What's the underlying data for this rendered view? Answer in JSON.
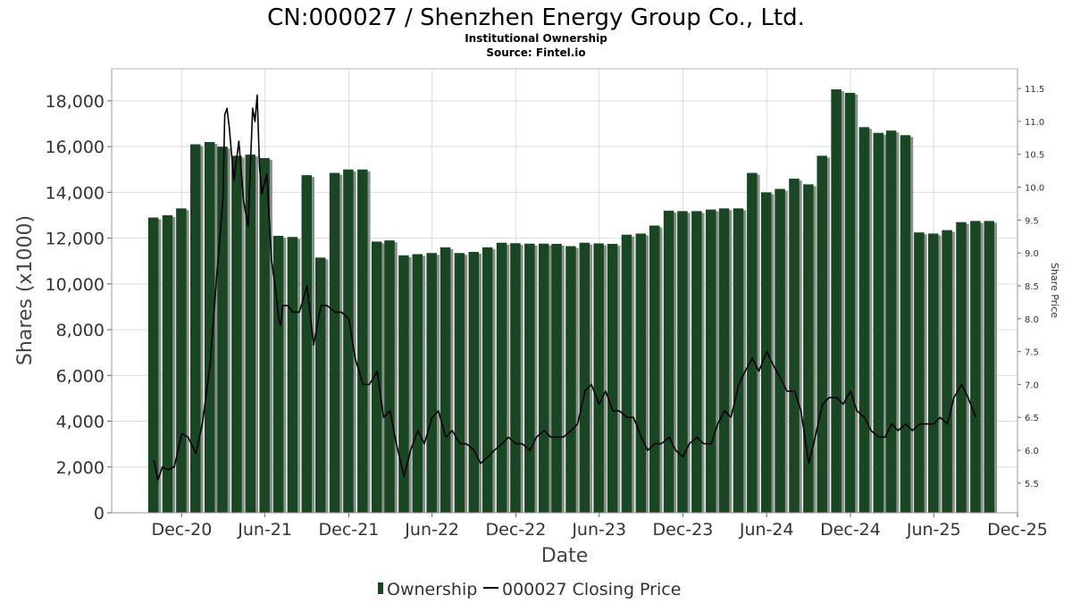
{
  "chart_data": {
    "type": "bar",
    "title": "CN:000027 / Shenzhen Energy Group Co., Ltd.",
    "subtitle": "Institutional Ownership",
    "source": "Source: Fintel.io",
    "xlabel": "Date",
    "ylabel": "Shares (x1000)",
    "y2label": "Share Price",
    "ylim": [
      0,
      19400
    ],
    "y2lim": [
      5.05,
      11.8
    ],
    "yticks": [
      "0",
      "2,000",
      "4,000",
      "6,000",
      "8,000",
      "10,000",
      "12,000",
      "14,000",
      "16,000",
      "18,000"
    ],
    "ytick_values": [
      0,
      2000,
      4000,
      6000,
      8000,
      10000,
      12000,
      14000,
      16000,
      18000
    ],
    "y2ticks": [
      "5.5",
      "6.0",
      "6.5",
      "7.0",
      "7.5",
      "8.0",
      "8.5",
      "9.0",
      "9.5",
      "10.0",
      "10.5",
      "11.0",
      "11.5"
    ],
    "y2tick_values": [
      5.5,
      6.0,
      6.5,
      7.0,
      7.5,
      8.0,
      8.5,
      9.0,
      9.5,
      10.0,
      10.5,
      11.0,
      11.5
    ],
    "xticks": [
      "Dec-20",
      "Jun-21",
      "Dec-21",
      "Jun-22",
      "Dec-22",
      "Jun-23",
      "Dec-23",
      "Jun-24",
      "Dec-24",
      "Jun-25",
      "Dec-25"
    ],
    "xtick_dates": [
      "2020-12-01",
      "2021-06-01",
      "2021-12-01",
      "2022-06-01",
      "2022-12-01",
      "2023-06-01",
      "2023-12-01",
      "2024-06-01",
      "2024-12-01",
      "2025-06-01",
      "2025-12-01"
    ],
    "xlim": [
      "2020-07-01",
      "2025-12-01"
    ],
    "grid": true,
    "legend_position": "bottom",
    "series": [
      {
        "name": "Ownership",
        "type": "bar",
        "color": "#1a4723",
        "dates": [
          "2020-09-30",
          "2020-10-31",
          "2020-11-30",
          "2020-12-31",
          "2021-01-31",
          "2021-02-28",
          "2021-03-31",
          "2021-04-30",
          "2021-05-31",
          "2021-06-30",
          "2021-07-31",
          "2021-08-31",
          "2021-09-30",
          "2021-10-31",
          "2021-11-30",
          "2021-12-31",
          "2022-01-31",
          "2022-02-28",
          "2022-03-31",
          "2022-04-30",
          "2022-05-31",
          "2022-06-30",
          "2022-07-31",
          "2022-08-31",
          "2022-09-30",
          "2022-10-31",
          "2022-11-30",
          "2022-12-31",
          "2023-01-31",
          "2023-02-28",
          "2023-03-31",
          "2023-04-30",
          "2023-05-31",
          "2023-06-30",
          "2023-07-31",
          "2023-08-31",
          "2023-09-30",
          "2023-10-31",
          "2023-11-30",
          "2023-12-31",
          "2024-01-31",
          "2024-02-29",
          "2024-03-31",
          "2024-04-30",
          "2024-05-31",
          "2024-06-30",
          "2024-07-31",
          "2024-08-31",
          "2024-09-30",
          "2024-10-31",
          "2024-11-30",
          "2024-12-31",
          "2025-01-31",
          "2025-02-28",
          "2025-03-31",
          "2025-04-30",
          "2025-05-31",
          "2025-06-30",
          "2025-07-31",
          "2025-08-31",
          "2025-09-30"
        ],
        "values": [
          12900,
          13000,
          13300,
          16100,
          16200,
          16000,
          15600,
          15650,
          15500,
          12100,
          12050,
          14750,
          11150,
          14850,
          15000,
          15000,
          11850,
          11900,
          11250,
          11300,
          11350,
          11600,
          11350,
          11400,
          11600,
          11800,
          11780,
          11760,
          11760,
          11750,
          11650,
          11800,
          11770,
          11750,
          12150,
          12200,
          12550,
          13200,
          13180,
          13180,
          13250,
          13300,
          13300,
          14850,
          14000,
          14150,
          14600,
          14350,
          15600,
          18500,
          18350,
          16850,
          16600,
          16700,
          16500,
          12250,
          12200,
          12350,
          12700,
          12750,
          12750
        ]
      },
      {
        "name": "000027 Closing Price",
        "type": "line",
        "color": "#000000",
        "dates": [
          "2020-10-01",
          "2020-10-10",
          "2020-10-20",
          "2020-11-01",
          "2020-11-15",
          "2020-12-01",
          "2020-12-15",
          "2021-01-01",
          "2021-01-15",
          "2021-02-01",
          "2021-02-15",
          "2021-03-01",
          "2021-03-05",
          "2021-03-10",
          "2021-03-15",
          "2021-03-25",
          "2021-04-05",
          "2021-04-15",
          "2021-04-25",
          "2021-05-01",
          "2021-05-05",
          "2021-05-10",
          "2021-05-15",
          "2021-05-20",
          "2021-05-25",
          "2021-06-05",
          "2021-06-15",
          "2021-06-25",
          "2021-07-01",
          "2021-07-05",
          "2021-07-10",
          "2021-07-20",
          "2021-08-01",
          "2021-08-15",
          "2021-09-01",
          "2021-09-15",
          "2021-10-01",
          "2021-10-15",
          "2021-11-01",
          "2021-11-15",
          "2021-12-01",
          "2021-12-15",
          "2022-01-01",
          "2022-01-15",
          "2022-02-01",
          "2022-02-15",
          "2022-03-01",
          "2022-03-15",
          "2022-04-01",
          "2022-04-15",
          "2022-05-01",
          "2022-05-15",
          "2022-06-01",
          "2022-06-15",
          "2022-07-01",
          "2022-07-15",
          "2022-08-01",
          "2022-08-15",
          "2022-09-01",
          "2022-09-15",
          "2022-10-01",
          "2022-10-15",
          "2022-11-01",
          "2022-11-15",
          "2022-12-01",
          "2022-12-15",
          "2023-01-01",
          "2023-01-15",
          "2023-02-01",
          "2023-02-15",
          "2023-03-01",
          "2023-03-15",
          "2023-04-01",
          "2023-04-15",
          "2023-05-01",
          "2023-05-15",
          "2023-06-01",
          "2023-06-15",
          "2023-07-01",
          "2023-07-15",
          "2023-08-01",
          "2023-08-15",
          "2023-09-01",
          "2023-09-15",
          "2023-10-01",
          "2023-10-15",
          "2023-11-01",
          "2023-11-15",
          "2023-12-01",
          "2023-12-15",
          "2024-01-01",
          "2024-01-15",
          "2024-02-01",
          "2024-02-15",
          "2024-03-01",
          "2024-03-15",
          "2024-04-01",
          "2024-04-15",
          "2024-05-01",
          "2024-05-15",
          "2024-06-01",
          "2024-06-15",
          "2024-07-01",
          "2024-07-15",
          "2024-08-01",
          "2024-08-15",
          "2024-09-01",
          "2024-09-15",
          "2024-10-01",
          "2024-10-15",
          "2024-11-01",
          "2024-11-15",
          "2024-12-01",
          "2024-12-15",
          "2025-01-01",
          "2025-01-15",
          "2025-02-01",
          "2025-02-15",
          "2025-03-01",
          "2025-03-15",
          "2025-04-01",
          "2025-04-15",
          "2025-05-01",
          "2025-05-15",
          "2025-06-01",
          "2025-06-15",
          "2025-07-01",
          "2025-07-15",
          "2025-08-01",
          "2025-08-15",
          "2025-09-01"
        ],
        "values": [
          5.85,
          5.55,
          5.75,
          5.7,
          5.75,
          6.25,
          6.2,
          5.95,
          6.4,
          7.3,
          8.6,
          9.8,
          11.1,
          11.2,
          10.9,
          10.1,
          10.7,
          9.8,
          9.4,
          10.5,
          11.2,
          11.0,
          11.4,
          10.3,
          9.9,
          10.2,
          8.9,
          8.4,
          8.0,
          7.9,
          8.2,
          8.2,
          8.1,
          8.1,
          8.5,
          7.6,
          8.2,
          8.2,
          8.1,
          8.1,
          8.0,
          7.4,
          7.0,
          7.0,
          7.2,
          6.5,
          6.6,
          6.1,
          5.6,
          6.0,
          6.3,
          6.1,
          6.5,
          6.6,
          6.2,
          6.3,
          6.1,
          6.1,
          6.0,
          5.8,
          5.9,
          6.0,
          6.1,
          6.2,
          6.1,
          6.1,
          6.0,
          6.2,
          6.3,
          6.2,
          6.2,
          6.2,
          6.3,
          6.4,
          6.9,
          7.0,
          6.7,
          6.9,
          6.6,
          6.6,
          6.5,
          6.5,
          6.2,
          6.0,
          6.1,
          6.1,
          6.2,
          6.0,
          5.9,
          6.1,
          6.2,
          6.1,
          6.1,
          6.4,
          6.6,
          6.5,
          7.0,
          7.2,
          7.4,
          7.2,
          7.5,
          7.3,
          7.1,
          6.9,
          6.9,
          6.6,
          5.8,
          6.2,
          6.7,
          6.8,
          6.8,
          6.7,
          6.9,
          6.6,
          6.5,
          6.3,
          6.2,
          6.2,
          6.4,
          6.3,
          6.4,
          6.3,
          6.4,
          6.4,
          6.4,
          6.5,
          6.4,
          6.8,
          7.0,
          6.8,
          6.5
        ]
      }
    ]
  }
}
